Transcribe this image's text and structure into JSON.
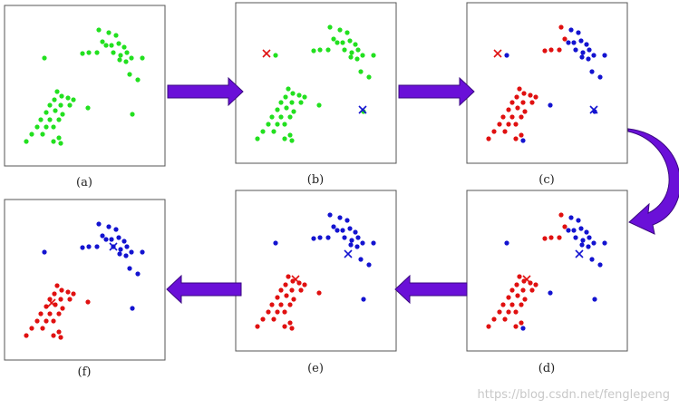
{
  "colors": {
    "green": "#22e01f",
    "red": "#e01010",
    "blue": "#1313d0",
    "arrow": "#6a10d8",
    "arrow_edge": "#3a0880",
    "frame": "#555555"
  },
  "panels": [
    {
      "label": "(a)",
      "mode": "all-green",
      "centroids": []
    },
    {
      "label": "(b)",
      "mode": "all-green",
      "centroids": [
        "red-init",
        "blue-init"
      ]
    },
    {
      "label": "(c)",
      "mode": "split-1",
      "centroids": [
        "red-init",
        "blue-init"
      ]
    },
    {
      "label": "(d)",
      "mode": "split-1",
      "centroids": [
        "red-mid",
        "blue-mid"
      ]
    },
    {
      "label": "(e)",
      "mode": "split-final",
      "centroids": [
        "red-mid",
        "blue-mid"
      ]
    },
    {
      "label": "(f)",
      "mode": "split-final",
      "centroids": [
        "red-final",
        "blue-final"
      ]
    }
  ],
  "watermark": "https://blog.csdn.net/fenglepeng"
}
